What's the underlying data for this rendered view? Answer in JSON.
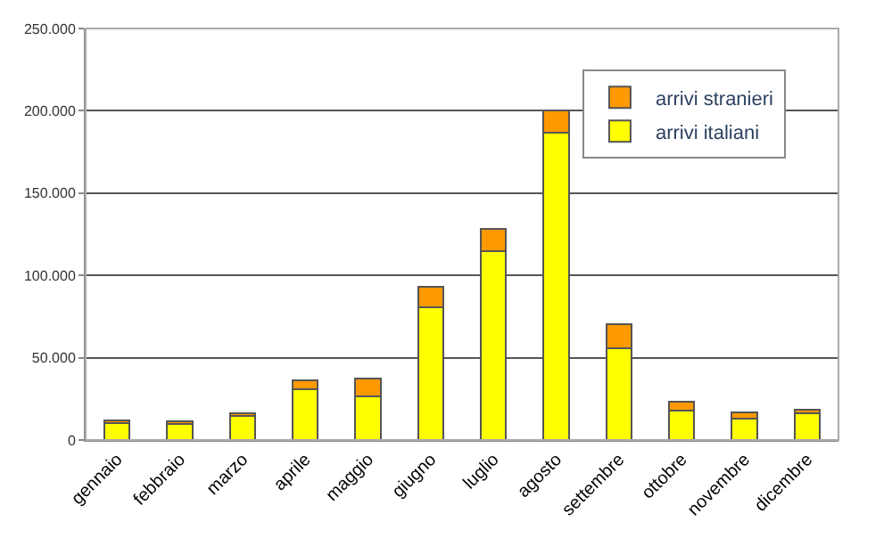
{
  "chart_data": {
    "type": "bar",
    "stacked": true,
    "categories": [
      "gennaio",
      "febbraio",
      "marzo",
      "aprile",
      "maggio",
      "giugno",
      "luglio",
      "agosto",
      "settembre",
      "ottobre",
      "novembre",
      "dicembre"
    ],
    "series": [
      {
        "name": "arrivi italiani",
        "color": "#ffff00",
        "values": [
          10300,
          9600,
          14500,
          30900,
          26600,
          80900,
          114800,
          186800,
          56000,
          17800,
          12800,
          16400
        ]
      },
      {
        "name": "arrivi stranieri",
        "color": "#ff9900",
        "values": [
          1400,
          1700,
          1500,
          5300,
          10600,
          12400,
          13500,
          13600,
          14200,
          5700,
          4000,
          2100
        ]
      }
    ],
    "ylim": [
      0,
      250000
    ],
    "yticks": [
      {
        "value": 0,
        "label": "0"
      },
      {
        "value": 50000,
        "label": "50.000"
      },
      {
        "value": 100000,
        "label": "100.000"
      },
      {
        "value": 150000,
        "label": "150.000"
      },
      {
        "value": 200000,
        "label": "200.000"
      },
      {
        "value": 250000,
        "label": "250.000"
      }
    ],
    "grid": "y",
    "legend": "top right"
  }
}
